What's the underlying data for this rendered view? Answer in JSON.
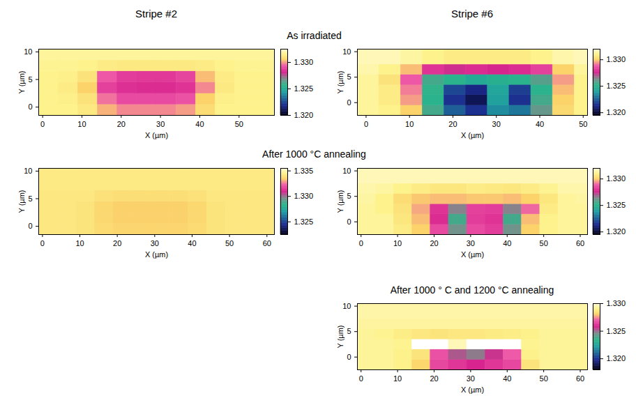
{
  "chart_data": [
    {
      "type": "heatmap",
      "stripe": "Stripe #2",
      "stage": "As irradiated",
      "xlabel": "X (µm)",
      "ylabel": "Y (µm)",
      "xlim": [
        -1,
        59
      ],
      "ylim": [
        -1.5,
        10.5
      ],
      "xticks": [
        0,
        10,
        20,
        30,
        40,
        50
      ],
      "yticks": [
        0,
        5,
        10
      ],
      "x_edges": [
        -1,
        4,
        9,
        14,
        19,
        24,
        29,
        34,
        39,
        44,
        49,
        54,
        59
      ],
      "y_edges": [
        -1.5,
        0.5,
        2.5,
        4.5,
        6.5,
        8.5,
        10.5
      ],
      "values": [
        [
          1.3315,
          1.3315,
          1.3312,
          1.3302,
          1.3298,
          1.3298,
          1.3298,
          1.33,
          1.3308,
          1.3315,
          1.3315,
          1.3315
        ],
        [
          1.3315,
          1.3314,
          1.331,
          1.3296,
          1.329,
          1.329,
          1.329,
          1.3292,
          1.3305,
          1.3314,
          1.3315,
          1.3315
        ],
        [
          1.3315,
          1.3313,
          1.3305,
          1.3288,
          1.3284,
          1.3283,
          1.3283,
          1.3285,
          1.3298,
          1.3312,
          1.3315,
          1.3315
        ],
        [
          1.3315,
          1.3314,
          1.331,
          1.3293,
          1.3287,
          1.3286,
          1.3286,
          1.3289,
          1.3303,
          1.3313,
          1.3315,
          1.3315
        ],
        [
          1.3316,
          1.3316,
          1.3315,
          1.3313,
          1.3312,
          1.3312,
          1.3312,
          1.3312,
          1.3313,
          1.3315,
          1.3316,
          1.3316
        ],
        [
          1.3317,
          1.3317,
          1.3317,
          1.3317,
          1.3317,
          1.3317,
          1.3317,
          1.3317,
          1.3317,
          1.3317,
          1.3317,
          1.3317
        ]
      ],
      "colorbar": {
        "range": [
          1.32,
          1.3325
        ],
        "ticks": [
          {
            "value": 1.32,
            "label": "1.320"
          },
          1.325,
          {
            "value": 1.33,
            "label": "1.330"
          }
        ]
      }
    },
    {
      "type": "heatmap",
      "stripe": "Stripe #2",
      "stage": "After 1000 °C annealing",
      "xlabel": "X (µm)",
      "ylabel": "Y (µm)",
      "xlim": [
        -1,
        62
      ],
      "ylim": [
        -1.5,
        10.5
      ],
      "xticks": [
        0,
        10,
        20,
        30,
        40,
        50,
        60
      ],
      "yticks": [
        0,
        5,
        10
      ],
      "x_edges": [
        -1,
        4,
        9,
        14,
        19,
        24,
        29,
        34,
        39,
        44,
        49,
        54,
        59,
        62
      ],
      "y_edges": [
        -1.5,
        0.5,
        2.5,
        4.5,
        6.5,
        8.5,
        10.5
      ],
      "values": [
        [
          1.3341,
          1.3341,
          1.334,
          1.3337,
          1.3335,
          1.3335,
          1.3335,
          1.3335,
          1.3337,
          1.334,
          1.3341,
          1.3341,
          1.3341
        ],
        [
          1.3341,
          1.3341,
          1.334,
          1.3336,
          1.3334,
          1.3334,
          1.3334,
          1.3334,
          1.3336,
          1.334,
          1.3341,
          1.3341,
          1.3341
        ],
        [
          1.3341,
          1.3341,
          1.334,
          1.3336,
          1.3334,
          1.3334,
          1.3334,
          1.3334,
          1.3336,
          1.334,
          1.3341,
          1.3341,
          1.3341
        ],
        [
          1.3341,
          1.3341,
          1.3341,
          1.3339,
          1.3338,
          1.3338,
          1.3338,
          1.3338,
          1.3339,
          1.3341,
          1.3341,
          1.3341,
          1.3341
        ],
        [
          1.3342,
          1.3342,
          1.3342,
          1.3342,
          1.3342,
          1.3342,
          1.3342,
          1.3342,
          1.3342,
          1.3342,
          1.3342,
          1.3342,
          1.3342
        ],
        [
          1.3342,
          1.3342,
          1.3342,
          1.3342,
          1.3342,
          1.3342,
          1.3342,
          1.3342,
          1.3342,
          1.3342,
          1.3342,
          1.3342,
          1.3342
        ]
      ],
      "colorbar": {
        "range": [
          1.3225,
          1.3355
        ],
        "ticks": [
          1.325,
          {
            "value": 1.33,
            "label": "1.330"
          },
          1.335
        ]
      }
    },
    {
      "type": "heatmap",
      "stripe": "Stripe #6",
      "stage": "As irradiated",
      "xlabel": "X (µm)",
      "ylabel": "Y (µm)",
      "xlim": [
        -2,
        51
      ],
      "ylim": [
        -2.5,
        10.5
      ],
      "xticks": [
        0,
        10,
        20,
        30,
        40,
        50
      ],
      "yticks": [
        0,
        5,
        10
      ],
      "x_edges": [
        -2,
        3,
        8,
        13,
        18,
        23,
        28,
        33,
        38,
        43,
        48,
        51
      ],
      "y_edges": [
        -2.5,
        -0.5,
        1.5,
        3.5,
        5.5,
        7.5,
        10.5
      ],
      "values": [
        [
          1.3312,
          1.331,
          1.33,
          1.3255,
          1.3225,
          1.3215,
          1.3235,
          1.323,
          1.326,
          1.3302,
          1.331
        ],
        [
          1.3312,
          1.3308,
          1.3295,
          1.325,
          1.3215,
          1.3205,
          1.324,
          1.3215,
          1.3255,
          1.33,
          1.331
        ],
        [
          1.3312,
          1.3308,
          1.3292,
          1.3252,
          1.322,
          1.3212,
          1.3242,
          1.3218,
          1.325,
          1.3298,
          1.331
        ],
        [
          1.3312,
          1.3305,
          1.3288,
          1.3255,
          1.325,
          1.3245,
          1.3248,
          1.325,
          1.3258,
          1.3295,
          1.331
        ],
        [
          1.3314,
          1.331,
          1.3298,
          1.328,
          1.3275,
          1.3278,
          1.3276,
          1.3278,
          1.3283,
          1.33,
          1.3312
        ],
        [
          1.3316,
          1.3316,
          1.3313,
          1.331,
          1.3308,
          1.3308,
          1.3308,
          1.3308,
          1.331,
          1.3314,
          1.3316
        ]
      ],
      "colorbar": {
        "range": [
          1.3195,
          1.332
        ],
        "ticks": [
          {
            "value": 1.32,
            "label": "1.320"
          },
          1.325,
          {
            "value": 1.33,
            "label": "1.330"
          }
        ]
      }
    },
    {
      "type": "heatmap",
      "stripe": "Stripe #6",
      "stage": "After 1000 °C annealing",
      "xlabel": "X (µm)",
      "ylabel": "Y (µm)",
      "xlim": [
        -1,
        62
      ],
      "ylim": [
        -2.5,
        10.5
      ],
      "xticks": [
        0,
        10,
        20,
        30,
        40,
        50,
        60
      ],
      "yticks": [
        0,
        5,
        10
      ],
      "x_edges": [
        -1,
        4,
        9,
        14,
        19,
        24,
        29,
        34,
        39,
        44,
        49,
        54,
        59,
        62
      ],
      "y_edges": [
        -2.5,
        -0.5,
        1.5,
        3.5,
        5.5,
        7.5,
        10.5
      ],
      "values": [
        [
          1.3312,
          1.3312,
          1.3308,
          1.33,
          1.3285,
          1.3262,
          1.3285,
          1.3282,
          1.3262,
          1.33,
          1.331,
          1.3312,
          1.3312
        ],
        [
          1.3312,
          1.3312,
          1.3306,
          1.3298,
          1.3278,
          1.3255,
          1.3282,
          1.328,
          1.3255,
          1.3298,
          1.331,
          1.3312,
          1.3312
        ],
        [
          1.3312,
          1.331,
          1.3305,
          1.3296,
          1.328,
          1.3265,
          1.3283,
          1.3282,
          1.3265,
          1.329,
          1.3308,
          1.3312,
          1.3312
        ],
        [
          1.3313,
          1.331,
          1.3303,
          1.3299,
          1.3298,
          1.3298,
          1.3299,
          1.3299,
          1.3298,
          1.33,
          1.3306,
          1.3312,
          1.3313
        ],
        [
          1.3314,
          1.3313,
          1.331,
          1.3308,
          1.3306,
          1.3306,
          1.3308,
          1.3307,
          1.3306,
          1.3308,
          1.3311,
          1.3314,
          1.3314
        ],
        [
          1.3316,
          1.3316,
          1.3316,
          1.3316,
          1.3316,
          1.3316,
          1.3316,
          1.3316,
          1.3316,
          1.3316,
          1.3316,
          1.3316,
          1.3316
        ]
      ],
      "colorbar": {
        "range": [
          1.3195,
          1.332
        ],
        "ticks": [
          {
            "value": 1.32,
            "label": "1.320"
          },
          1.325,
          {
            "value": 1.33,
            "label": "1.330"
          }
        ]
      }
    },
    {
      "type": "heatmap",
      "stripe": "Stripe #6",
      "stage": "After 1000 ° C and 1200 °C annealing",
      "xlabel": "X (µm)",
      "ylabel": "Y (µm)",
      "xlim": [
        -1,
        62
      ],
      "ylim": [
        -2.5,
        10.5
      ],
      "xticks": [
        0,
        10,
        20,
        30,
        40,
        50,
        60
      ],
      "yticks": [
        0,
        5,
        10
      ],
      "x_edges": [
        -1,
        4,
        9,
        14,
        19,
        24,
        29,
        34,
        39,
        44,
        49,
        54,
        59,
        62
      ],
      "y_edges": [
        -2.5,
        -0.5,
        1.5,
        3.5,
        5.5,
        7.5,
        10.5
      ],
      "values": [
        [
          1.3292,
          1.3292,
          1.329,
          1.3282,
          1.3266,
          1.3262,
          1.3258,
          1.3262,
          1.3266,
          1.3286,
          1.3292,
          1.3292,
          1.3292
        ],
        [
          1.3292,
          1.3292,
          1.329,
          1.3286,
          1.3268,
          1.3252,
          1.3248,
          1.3256,
          1.327,
          1.329,
          1.3292,
          1.3292,
          1.3292
        ],
        [
          1.3292,
          1.3292,
          1.3291,
          1.3302,
          1.3304,
          1.3296,
          1.3301,
          1.3303,
          1.3302,
          1.3291,
          1.3292,
          1.3292,
          1.3292
        ],
        [
          1.3292,
          1.3291,
          1.3289,
          1.3287,
          1.3286,
          1.3287,
          1.3287,
          1.3288,
          1.3289,
          1.329,
          1.3292,
          1.3292,
          1.3292
        ],
        [
          1.3293,
          1.3293,
          1.3293,
          1.3293,
          1.3293,
          1.3293,
          1.3293,
          1.3293,
          1.3293,
          1.3293,
          1.3293,
          1.3293,
          1.3293
        ],
        [
          1.3294,
          1.3294,
          1.3294,
          1.3294,
          1.3294,
          1.3294,
          1.3294,
          1.3294,
          1.3294,
          1.3294,
          1.3294,
          1.3294,
          1.3294
        ]
      ],
      "colorbar": {
        "range": [
          1.318,
          1.33
        ],
        "ticks": [
          {
            "value": 1.32,
            "label": "1.320"
          },
          1.325,
          {
            "value": 1.33,
            "label": "1.330"
          }
        ]
      }
    }
  ]
}
